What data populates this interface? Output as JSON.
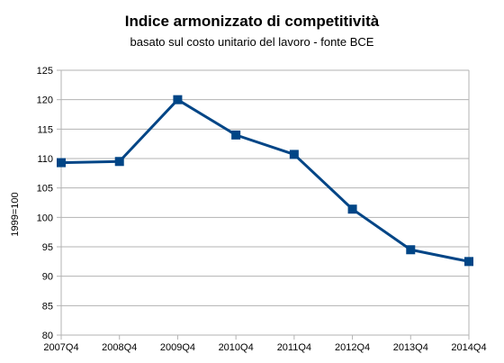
{
  "chart_data": {
    "type": "line",
    "title": "Indice armonizzato di competitività",
    "subtitle": "basato sul costo unitario del lavoro - fonte BCE",
    "xlabel": "",
    "ylabel": "1999=100",
    "ylim": [
      80,
      125
    ],
    "yticks": [
      80,
      85,
      90,
      95,
      100,
      105,
      110,
      115,
      120,
      125
    ],
    "grid": true,
    "legend": "none",
    "categories": [
      "2007Q4",
      "2008Q4",
      "2009Q4",
      "2010Q4",
      "2011Q4",
      "2012Q4",
      "2013Q4",
      "2014Q4"
    ],
    "series": [
      {
        "values": [
          109.3,
          109.5,
          120.0,
          114.0,
          110.7,
          101.4,
          94.5,
          92.5
        ]
      }
    ],
    "colors": {
      "line": "#004586",
      "grid": "#b3b3b3",
      "axis": "#b3b3b3"
    }
  }
}
